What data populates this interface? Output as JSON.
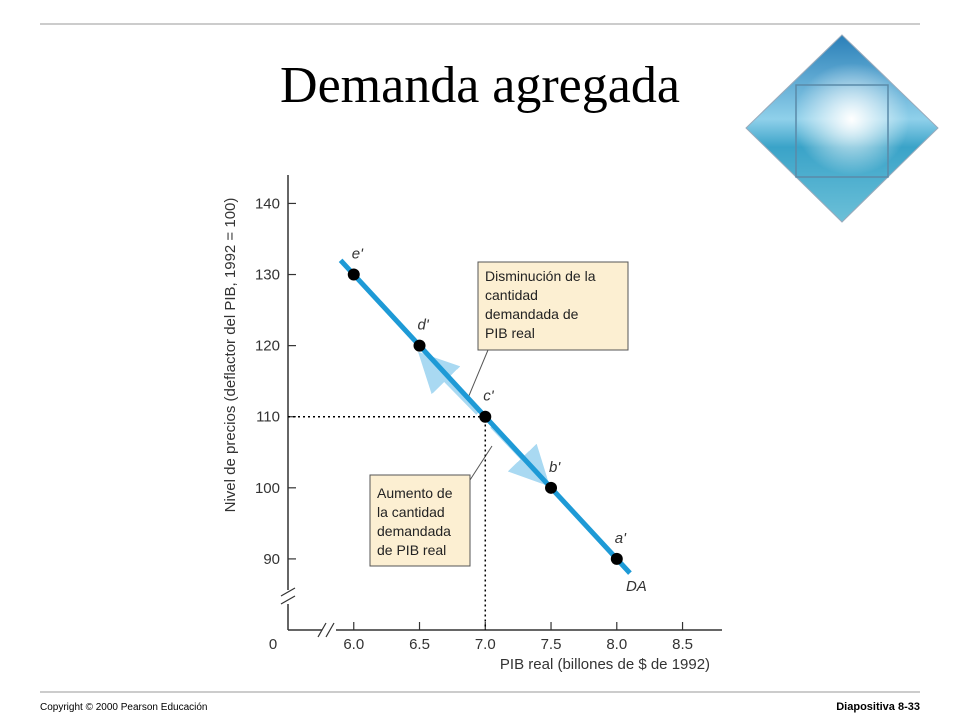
{
  "slide": {
    "title": "Demanda agregada",
    "footer_left": "Copyright © 2000 Pearson Educación",
    "footer_right": "Diapositiva  8-33"
  },
  "chart_data": {
    "type": "scatter",
    "x_label": "PIB real (billones de $ de 1992)",
    "y_label": "Nivel de precios (deflactor del PIB, 1992 = 100)",
    "origin_label": "0",
    "xlim": [
      5.5,
      8.8
    ],
    "ylim": [
      80,
      144
    ],
    "xticks": [
      {
        "value": 6,
        "label": "6.0"
      },
      {
        "value": 6.5,
        "label": "6.5"
      },
      {
        "value": 7,
        "label": "7.0"
      },
      {
        "value": 7.5,
        "label": "7.5"
      },
      {
        "value": 8,
        "label": "8.0"
      },
      {
        "value": 8.5,
        "label": "8.5"
      }
    ],
    "yticks": [
      90,
      100,
      110,
      120,
      130,
      140
    ],
    "points": {
      "labels": [
        "e'",
        "d'",
        "c'",
        "b'",
        "a'"
      ],
      "x": [
        6.0,
        6.5,
        7.0,
        7.5,
        8.0
      ],
      "values": [
        130,
        120,
        110,
        100,
        90
      ],
      "color": "#000000"
    },
    "curve": {
      "name": "DA",
      "x": [
        5.9,
        8.1
      ],
      "values": [
        132,
        88
      ],
      "color": "#1e9ad6"
    },
    "annotations": [
      {
        "lines": [
          "Disminución de la",
          "cantidad",
          "demandada de",
          "PIB real"
        ]
      },
      {
        "lines": [
          "Aumento de",
          "la cantidad",
          "demandada",
          "de PIB real"
        ]
      }
    ]
  }
}
